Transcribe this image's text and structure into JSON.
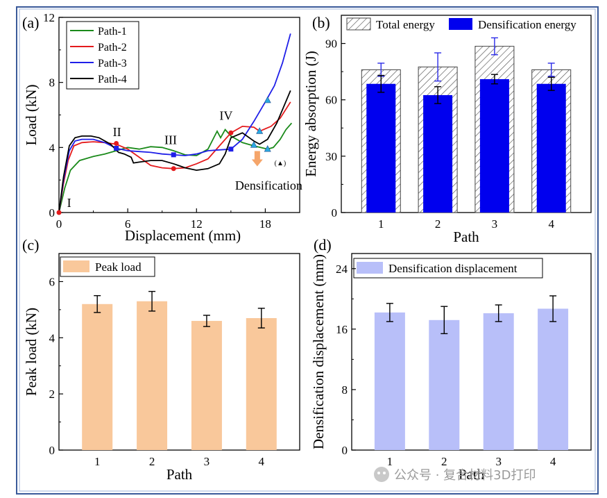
{
  "chart_data": [
    {
      "panel": "(a)",
      "type": "line",
      "xlabel": "Displacement (mm)",
      "ylabel": "Load (kN)",
      "xlim": [
        0,
        21
      ],
      "ylim": [
        0,
        12
      ],
      "xticks": [
        "0",
        "6",
        "12",
        "18"
      ],
      "yticks": [
        "0",
        "4",
        "8",
        "12"
      ],
      "series": [
        {
          "name": "Path-1",
          "color": "#1a8a1a",
          "points": [
            [
              0,
              0
            ],
            [
              0.5,
              1.5
            ],
            [
              1,
              2.6
            ],
            [
              1.8,
              3.2
            ],
            [
              3,
              3.45
            ],
            [
              4,
              3.6
            ],
            [
              5,
              3.8
            ],
            [
              6,
              4.0
            ],
            [
              7,
              3.9
            ],
            [
              8,
              4.05
            ],
            [
              9,
              4.0
            ],
            [
              10,
              3.8
            ],
            [
              11,
              3.55
            ],
            [
              12,
              3.5
            ],
            [
              13,
              3.9
            ],
            [
              13.8,
              5.0
            ],
            [
              14.1,
              4.6
            ],
            [
              14.5,
              5.1
            ],
            [
              15,
              4.7
            ],
            [
              16,
              4.3
            ],
            [
              17,
              4.1
            ],
            [
              18.2,
              3.9
            ],
            [
              18.7,
              4.0
            ],
            [
              19.3,
              4.5
            ],
            [
              19.8,
              5.1
            ],
            [
              20.3,
              5.5
            ]
          ]
        },
        {
          "name": "Path-2",
          "color": "#e41a1c",
          "points": [
            [
              0,
              0
            ],
            [
              0.4,
              1.8
            ],
            [
              0.8,
              3.2
            ],
            [
              1.3,
              4.1
            ],
            [
              2,
              4.3
            ],
            [
              3,
              4.35
            ],
            [
              4,
              4.3
            ],
            [
              5,
              4.2
            ],
            [
              6,
              3.9
            ],
            [
              7,
              3.4
            ],
            [
              8,
              2.9
            ],
            [
              9,
              2.75
            ],
            [
              10,
              2.7
            ],
            [
              11,
              2.75
            ],
            [
              12,
              3.0
            ],
            [
              13,
              3.3
            ],
            [
              14,
              4.1
            ],
            [
              15,
              4.9
            ],
            [
              16,
              5.3
            ],
            [
              17,
              5.25
            ],
            [
              17.5,
              5.0
            ],
            [
              18.5,
              5.3
            ],
            [
              19.3,
              5.8
            ],
            [
              20.2,
              6.8
            ]
          ]
        },
        {
          "name": "Path-3",
          "color": "#1f1fe8",
          "points": [
            [
              0,
              0
            ],
            [
              0.4,
              2.0
            ],
            [
              0.9,
              3.8
            ],
            [
              1.4,
              4.4
            ],
            [
              2,
              4.5
            ],
            [
              3,
              4.5
            ],
            [
              4,
              4.3
            ],
            [
              5,
              3.95
            ],
            [
              6,
              3.8
            ],
            [
              7,
              3.75
            ],
            [
              8,
              3.7
            ],
            [
              9,
              3.6
            ],
            [
              10,
              3.55
            ],
            [
              11,
              3.5
            ],
            [
              12,
              3.6
            ],
            [
              13,
              3.8
            ],
            [
              14,
              3.85
            ],
            [
              15,
              3.9
            ],
            [
              16,
              4.5
            ],
            [
              17,
              5.6
            ],
            [
              18,
              6.8
            ],
            [
              18.8,
              7.8
            ],
            [
              19.5,
              9.2
            ],
            [
              20.2,
              11.0
            ]
          ]
        },
        {
          "name": "Path-4",
          "color": "#000000",
          "points": [
            [
              0,
              0
            ],
            [
              0.4,
              2.2
            ],
            [
              0.9,
              4.1
            ],
            [
              1.4,
              4.6
            ],
            [
              2,
              4.7
            ],
            [
              2.8,
              4.7
            ],
            [
              3.5,
              4.6
            ],
            [
              4.5,
              4.2
            ],
            [
              5.2,
              3.7
            ],
            [
              5.7,
              3.6
            ],
            [
              6.3,
              3.4
            ],
            [
              6.5,
              3.05
            ],
            [
              7,
              3.1
            ],
            [
              8,
              3.2
            ],
            [
              9,
              3.2
            ],
            [
              10,
              3.0
            ],
            [
              11,
              2.75
            ],
            [
              12,
              2.6
            ],
            [
              13,
              2.7
            ],
            [
              14,
              3.0
            ],
            [
              14.5,
              3.6
            ],
            [
              15,
              4.6
            ],
            [
              16,
              4.9
            ],
            [
              17,
              4.4
            ],
            [
              17.5,
              4.2
            ],
            [
              18.2,
              4.5
            ],
            [
              19,
              5.5
            ],
            [
              19.6,
              6.5
            ],
            [
              20.2,
              7.5
            ]
          ]
        }
      ],
      "markers": [
        {
          "x": 0,
          "y": 0,
          "color": "#e41a1c",
          "shape": "circle"
        },
        {
          "x": 5,
          "y": 4.25,
          "color": "#e41a1c",
          "shape": "circle"
        },
        {
          "x": 10,
          "y": 2.7,
          "color": "#e41a1c",
          "shape": "circle"
        },
        {
          "x": 15,
          "y": 4.9,
          "color": "#e41a1c",
          "shape": "circle"
        },
        {
          "x": 5,
          "y": 3.95,
          "color": "#1f1fe8",
          "shape": "square"
        },
        {
          "x": 10,
          "y": 3.55,
          "color": "#1f1fe8",
          "shape": "square"
        },
        {
          "x": 15,
          "y": 3.9,
          "color": "#1f1fe8",
          "shape": "square"
        },
        {
          "x": 17,
          "y": 4.15,
          "color": "#29a8e0",
          "shape": "triangle"
        },
        {
          "x": 17.5,
          "y": 5.0,
          "color": "#29a8e0",
          "shape": "triangle"
        },
        {
          "x": 18.2,
          "y": 3.9,
          "color": "#29a8e0",
          "shape": "triangle"
        },
        {
          "x": 18.2,
          "y": 6.9,
          "color": "#29a8e0",
          "shape": "triangle"
        }
      ],
      "annotations": [
        {
          "text": "I",
          "x": 0.7,
          "y": 0.35
        },
        {
          "text": "II",
          "x": 4.7,
          "y": 4.7
        },
        {
          "text": "III",
          "x": 9.2,
          "y": 4.2
        },
        {
          "text": "IV",
          "x": 14.0,
          "y": 5.7
        },
        {
          "text": "(▲)",
          "x": 18.8,
          "y": 2.9
        },
        {
          "text": "Densification",
          "x": 18.3,
          "y": 1.4
        }
      ]
    },
    {
      "panel": "(b)",
      "type": "bar",
      "xlabel": "Path",
      "ylabel": "Energy absorption (J)",
      "categories": [
        "1",
        "2",
        "3",
        "4"
      ],
      "ylim": [
        0,
        105
      ],
      "yticks": [
        "0",
        "30",
        "60",
        "90"
      ],
      "series": [
        {
          "name": "Total energy",
          "values": [
            76,
            77.5,
            88.5,
            76
          ],
          "errors": [
            3.5,
            7.5,
            4.5,
            3.5
          ],
          "fill": "hatch"
        },
        {
          "name": "Densification energy",
          "values": [
            68.5,
            62.5,
            71,
            68.5
          ],
          "errors": [
            4.5,
            4.5,
            2.5,
            3.5
          ],
          "fill": "#0000ee"
        }
      ]
    },
    {
      "panel": "(c)",
      "type": "bar",
      "xlabel": "Path",
      "ylabel": "Peak load (kN)",
      "categories": [
        "1",
        "2",
        "3",
        "4"
      ],
      "ylim": [
        0,
        7
      ],
      "yticks": [
        "0",
        "2",
        "4",
        "6"
      ],
      "series": [
        {
          "name": "Peak load",
          "values": [
            5.2,
            5.3,
            4.6,
            4.7
          ],
          "errors": [
            0.3,
            0.35,
            0.2,
            0.35
          ],
          "fill": "#f9c89b"
        }
      ]
    },
    {
      "panel": "(d)",
      "type": "bar",
      "xlabel": "Path",
      "ylabel": "Densification displacement (mm)",
      "categories": [
        "1",
        "2",
        "3",
        "4"
      ],
      "ylim": [
        0,
        26
      ],
      "yticks": [
        "0",
        "8",
        "16",
        "24"
      ],
      "series": [
        {
          "name": "Densification displacement",
          "values": [
            18.2,
            17.2,
            18.1,
            18.7
          ],
          "errors": [
            1.2,
            1.8,
            1.1,
            1.7
          ],
          "fill": "#b8bff9"
        }
      ]
    }
  ],
  "watermark": "公众号 · 复合材料3D打印"
}
